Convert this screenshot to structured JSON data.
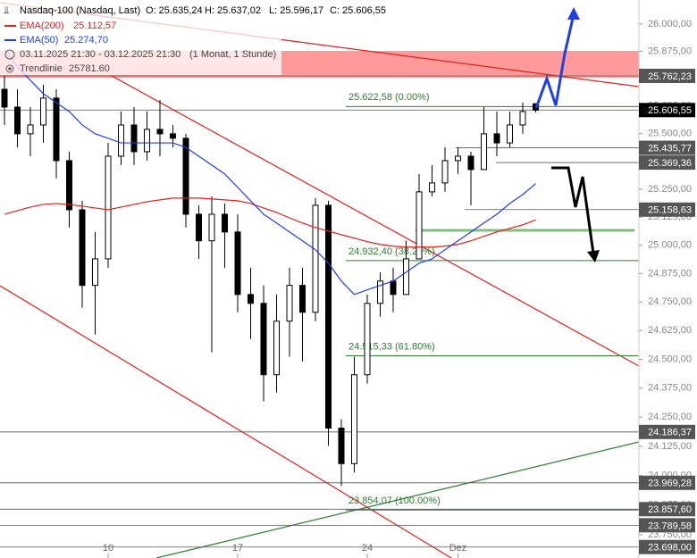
{
  "chart_data": {
    "type": "candlestick",
    "title": "Nasdaq-100 (Nasdaq, Last)",
    "ohlc_labels": [
      "O: 25.635,24",
      "H: 25.637,02",
      "L: 25.596,17",
      "C: 25.606,55"
    ],
    "range": "03.11.2025 21:30 - 03.12.2025 21:30",
    "interval": "(1 Monat, 1 Stunde)",
    "trendline": {
      "name": "Trendlinie",
      "label": "25781.60"
    },
    "log_scale": true,
    "ylim": [
      23652,
      26111
    ],
    "yticks": [
      {
        "value": 26000,
        "label": "26.000,00"
      },
      {
        "value": 25875,
        "label": "25.875,00"
      },
      {
        "value": 25750,
        "label": "25.750,00"
      },
      {
        "value": 25625,
        "label": "25.625,00"
      },
      {
        "value": 25500,
        "label": "25.500,00"
      },
      {
        "value": 25375,
        "label": "25.375,00"
      },
      {
        "value": 25250,
        "label": "25.250,00"
      },
      {
        "value": 25125,
        "label": "25.125,00"
      },
      {
        "value": 25000,
        "label": "25.000,00"
      },
      {
        "value": 24875,
        "label": "24.875,00"
      },
      {
        "value": 24750,
        "label": "24.750,00"
      },
      {
        "value": 24625,
        "label": "24.625,00"
      },
      {
        "value": 24500,
        "label": "24.500,00"
      },
      {
        "value": 24375,
        "label": "24.375,00"
      },
      {
        "value": 24250,
        "label": "24.250,00"
      },
      {
        "value": 24125,
        "label": "24.125,00"
      },
      {
        "value": 24000,
        "label": "24.000,00"
      },
      {
        "value": 23875,
        "label": "23.875,00"
      },
      {
        "value": 23750,
        "label": "23.750,00"
      }
    ],
    "categories": [
      null,
      null,
      null,
      null,
      null,
      null,
      null,
      null,
      "10",
      null,
      null,
      null,
      null,
      null,
      null,
      null,
      null,
      null,
      "17",
      null,
      null,
      null,
      null,
      null,
      null,
      null,
      null,
      null,
      "24",
      null,
      null,
      null,
      null,
      null,
      null,
      "Dez",
      null,
      null,
      null,
      null,
      null,
      null
    ],
    "open": [
      25701,
      25620,
      25499,
      25539,
      25661,
      25378,
      25158,
      24823,
      24940,
      25398,
      25539,
      25418,
      25519,
      25499,
      25479,
      25138,
      25020,
      25138,
      25059,
      24783,
      24744,
      24433,
      24666,
      24823,
      24705,
      25178,
      24203,
      24051,
      24433,
      24744,
      24842,
      24783,
      24940,
      25238,
      25278,
      25378,
      25398,
      25338,
      25499,
      25458,
      25539,
      25635.24
    ],
    "high": [
      25762,
      25701,
      25620,
      25722,
      25701,
      25418,
      25198,
      25059,
      25458,
      25600,
      25620,
      25600,
      25653,
      25539,
      25499,
      25178,
      25218,
      25186,
      25138,
      24901,
      24823,
      24783,
      24901,
      24901,
      25210,
      25198,
      24241,
      24511,
      24783,
      24881,
      24901,
      25020,
      25318,
      25358,
      25438,
      25438,
      25418,
      25620,
      25600,
      25600,
      25640,
      25637.02
    ],
    "low": [
      25539,
      25438,
      25398,
      25458,
      25298,
      25079,
      24725,
      24608,
      24901,
      25358,
      25358,
      25378,
      25398,
      25438,
      25079,
      24940,
      24530,
      24901,
      24705,
      24588,
      24318,
      24356,
      24511,
      24491,
      24666,
      24127,
      23956,
      24013,
      24395,
      24686,
      24705,
      24783,
      24940,
      25218,
      25238,
      25318,
      25178,
      25338,
      25398,
      25438,
      25499,
      25596.17
    ],
    "close": [
      25620,
      25499,
      25539,
      25661,
      25378,
      25158,
      24823,
      24940,
      25398,
      25539,
      25418,
      25519,
      25499,
      25479,
      25138,
      25020,
      25138,
      25059,
      24783,
      24744,
      24433,
      24666,
      24823,
      24705,
      25178,
      24203,
      24051,
      24433,
      24744,
      24842,
      24783,
      24940,
      25238,
      25278,
      25378,
      25398,
      25338,
      25499,
      25458,
      25539,
      25600,
      25606.55
    ],
    "series": [
      {
        "name": "EMA(200)",
        "color": "#e0201b",
        "value_label": "25.112,57",
        "values": [
          25138,
          25154,
          25170,
          25182,
          25186,
          25182,
          25174,
          25166,
          25158,
          25170,
          25182,
          25194,
          25202,
          25210,
          25210,
          25210,
          25206,
          25202,
          25198,
          25186,
          25166,
          25146,
          25122,
          25099,
          25079,
          25063,
          25047,
          25032,
          25016,
          25004,
          24996,
          24992,
          24992,
          24992,
          24996,
          25004,
          25020,
          25040,
          25059,
          25075,
          25091,
          25112.57
        ]
      },
      {
        "name": "EMA(50)",
        "color": "#1f3fe0",
        "value_label": "25.274,70",
        "values": [
          25885,
          25803,
          25742,
          25681,
          25640,
          25600,
          25539,
          25499,
          25479,
          25458,
          25458,
          25458,
          25458,
          25458,
          25438,
          25398,
          25358,
          25318,
          25258,
          25198,
          25138,
          25099,
          25059,
          25020,
          24980,
          24921,
          24842,
          24783,
          24803,
          24823,
          24842,
          24881,
          24921,
          24940,
          24980,
          25020,
          25059,
          25099,
          25138,
          25186,
          25226,
          25274.7
        ]
      }
    ],
    "fib_levels": [
      {
        "value": 25622.58,
        "label": "25.622,58 (0.00%)"
      },
      {
        "value": 24932.4,
        "label": "24.932,40 (38.20%)"
      },
      {
        "value": 24515.33,
        "label": "24.515,33 (61.80%)"
      },
      {
        "value": 23854.07,
        "label": "23.854,07 (100.00%)"
      }
    ],
    "price_tags": [
      {
        "value": 25762.23,
        "label": "25.762,23"
      },
      {
        "value": 25606.55,
        "label": "25.606,55"
      },
      {
        "value": 25435.77,
        "label": "25.435,77"
      },
      {
        "value": 25369.36,
        "label": "25.369,36"
      },
      {
        "value": 25158.63,
        "label": "25.158,63"
      },
      {
        "value": 24186.37,
        "label": "24.186,37"
      },
      {
        "value": 23969.28,
        "label": "23.969,28"
      },
      {
        "value": 23857.6,
        "label": "23.857,60"
      },
      {
        "value": 23789.58,
        "label": "23.789,58"
      },
      {
        "value": 23698.0,
        "label": "23.698,00"
      }
    ]
  }
}
